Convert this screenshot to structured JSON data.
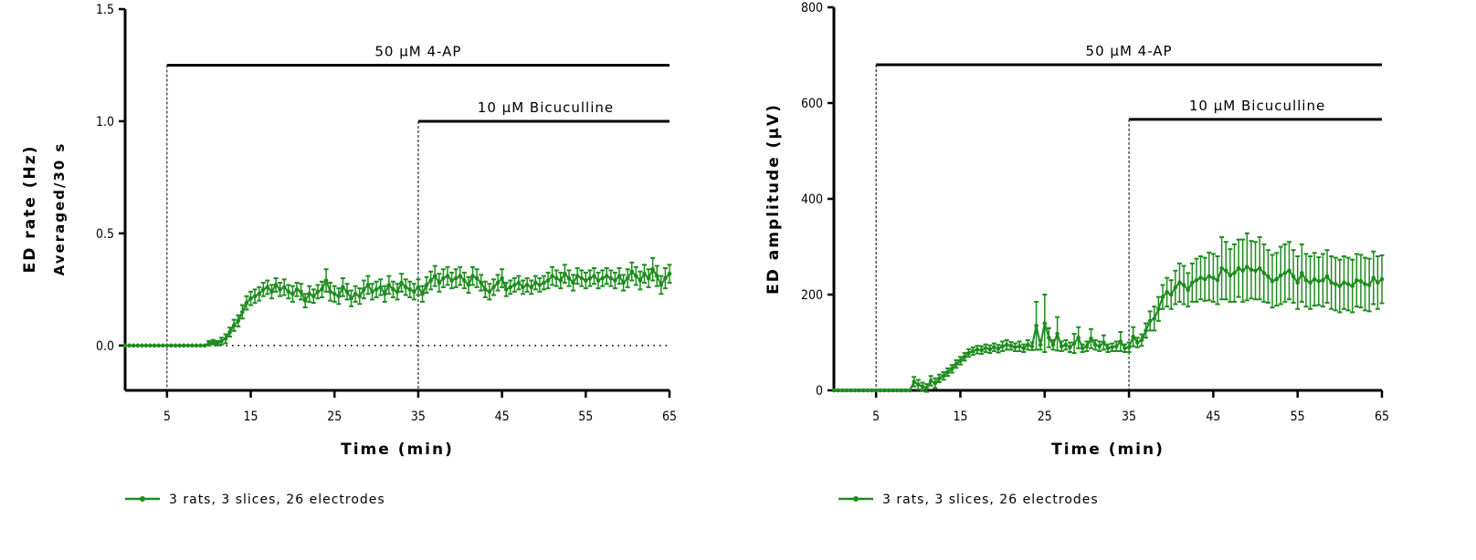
{
  "chart_data": [
    {
      "type": "line",
      "title": "",
      "xlabel": "Time (min)",
      "ylabel": "ED rate (Hz)",
      "ylabel2": "Averaged/30 s",
      "xlim": [
        0,
        65
      ],
      "ylim": [
        -0.2,
        1.5
      ],
      "xticks": [
        5,
        15,
        25,
        35,
        45,
        55,
        65
      ],
      "yticks": [
        0.0,
        0.5,
        1.0,
        1.5
      ],
      "ytick_labels": [
        "0.0",
        "0.5",
        "1.0",
        "1.5"
      ],
      "grid": false,
      "zero_line": "dotted",
      "annotations": [
        {
          "text": "50 µM 4-AP",
          "start": 5,
          "end": 65,
          "level": 1.25
        },
        {
          "text": "10 µM Bicuculline",
          "start": 35,
          "end": 65,
          "level": 1.0
        }
      ],
      "legend": {
        "placement": "bottom-left",
        "label": "3 rats, 3 slices, 26 electrodes"
      },
      "color": "#1e8c1e",
      "x_step": 0.5,
      "series": [
        {
          "name": "3 rats, 3 slices, 26 electrodes",
          "values": [
            0,
            0,
            0,
            0,
            0,
            0,
            0,
            0,
            0,
            0,
            0,
            0,
            0,
            0,
            0,
            0,
            0,
            0,
            0,
            0,
            0.01,
            0.015,
            0.01,
            0.02,
            0.03,
            0.06,
            0.09,
            0.11,
            0.15,
            0.19,
            0.21,
            0.22,
            0.23,
            0.25,
            0.26,
            0.24,
            0.27,
            0.25,
            0.26,
            0.24,
            0.23,
            0.25,
            0.24,
            0.2,
            0.23,
            0.22,
            0.24,
            0.25,
            0.29,
            0.24,
            0.23,
            0.22,
            0.26,
            0.24,
            0.21,
            0.23,
            0.22,
            0.25,
            0.27,
            0.24,
            0.25,
            0.26,
            0.23,
            0.27,
            0.25,
            0.24,
            0.28,
            0.26,
            0.25,
            0.24,
            0.26,
            0.23,
            0.27,
            0.29,
            0.31,
            0.28,
            0.3,
            0.31,
            0.29,
            0.3,
            0.31,
            0.29,
            0.27,
            0.31,
            0.3,
            0.28,
            0.25,
            0.24,
            0.26,
            0.28,
            0.3,
            0.25,
            0.26,
            0.27,
            0.28,
            0.26,
            0.27,
            0.26,
            0.28,
            0.27,
            0.28,
            0.29,
            0.31,
            0.3,
            0.29,
            0.32,
            0.3,
            0.28,
            0.31,
            0.3,
            0.29,
            0.3,
            0.31,
            0.29,
            0.3,
            0.31,
            0.3,
            0.29,
            0.31,
            0.28,
            0.3,
            0.33,
            0.31,
            0.29,
            0.32,
            0.3,
            0.34,
            0.31,
            0.27,
            0.3,
            0.32
          ],
          "errors": [
            0,
            0,
            0,
            0,
            0,
            0,
            0,
            0,
            0,
            0,
            0,
            0,
            0,
            0,
            0,
            0,
            0,
            0,
            0,
            0,
            0.01,
            0.01,
            0.01,
            0.015,
            0.02,
            0.02,
            0.025,
            0.025,
            0.03,
            0.03,
            0.03,
            0.03,
            0.03,
            0.03,
            0.03,
            0.03,
            0.03,
            0.03,
            0.035,
            0.03,
            0.035,
            0.03,
            0.035,
            0.03,
            0.035,
            0.03,
            0.03,
            0.035,
            0.05,
            0.04,
            0.035,
            0.035,
            0.04,
            0.035,
            0.035,
            0.035,
            0.035,
            0.04,
            0.04,
            0.035,
            0.035,
            0.035,
            0.035,
            0.04,
            0.035,
            0.035,
            0.04,
            0.035,
            0.035,
            0.035,
            0.035,
            0.035,
            0.035,
            0.04,
            0.045,
            0.04,
            0.04,
            0.04,
            0.035,
            0.04,
            0.04,
            0.035,
            0.035,
            0.04,
            0.04,
            0.035,
            0.035,
            0.035,
            0.035,
            0.035,
            0.04,
            0.03,
            0.03,
            0.03,
            0.03,
            0.03,
            0.03,
            0.03,
            0.03,
            0.03,
            0.03,
            0.035,
            0.04,
            0.035,
            0.035,
            0.04,
            0.035,
            0.035,
            0.035,
            0.035,
            0.035,
            0.035,
            0.035,
            0.035,
            0.035,
            0.035,
            0.035,
            0.035,
            0.035,
            0.035,
            0.04,
            0.04,
            0.04,
            0.04,
            0.04,
            0.04,
            0.05,
            0.045,
            0.04,
            0.045,
            0.04
          ]
        }
      ]
    },
    {
      "type": "line",
      "title": "",
      "xlabel": "Time (min)",
      "ylabel": "ED amplitude (µV)",
      "xlim": [
        0,
        65
      ],
      "ylim": [
        0,
        800
      ],
      "xticks": [
        5,
        15,
        25,
        35,
        45,
        55,
        65
      ],
      "yticks": [
        0,
        200,
        400,
        600,
        800
      ],
      "ytick_labels": [
        "0",
        "200",
        "400",
        "600",
        "800"
      ],
      "grid": false,
      "annotations": [
        {
          "text": "50 µM 4-AP",
          "start": 5,
          "end": 65,
          "level": 680
        },
        {
          "text": "10 µM Bicuculline",
          "start": 35,
          "end": 65,
          "level": 566
        }
      ],
      "legend": {
        "placement": "bottom-left",
        "label": "3 rats, 3 slices, 26 electrodes"
      },
      "color": "#1e8c1e",
      "x_step": 0.5,
      "series": [
        {
          "name": "3 rats, 3 slices, 26 electrodes",
          "values": [
            0,
            0,
            0,
            0,
            0,
            0,
            0,
            0,
            0,
            0,
            0,
            0,
            0,
            0,
            0,
            0,
            0,
            0,
            0,
            18,
            12,
            8,
            5,
            20,
            15,
            25,
            30,
            38,
            45,
            55,
            62,
            70,
            78,
            82,
            85,
            84,
            88,
            86,
            90,
            87,
            92,
            95,
            93,
            90,
            92,
            88,
            95,
            92,
            135,
            95,
            140,
            110,
            95,
            118,
            92,
            95,
            90,
            98,
            110,
            88,
            92,
            108,
            95,
            92,
            100,
            88,
            90,
            92,
            102,
            88,
            90,
            112,
            100,
            105,
            125,
            145,
            150,
            170,
            195,
            205,
            200,
            215,
            225,
            220,
            210,
            225,
            230,
            235,
            232,
            238,
            235,
            230,
            255,
            250,
            240,
            245,
            255,
            250,
            258,
            252,
            250,
            255,
            245,
            238,
            228,
            232,
            240,
            245,
            250,
            238,
            225,
            245,
            230,
            225,
            232,
            228,
            230,
            238,
            225,
            222,
            218,
            225,
            222,
            218,
            230,
            228,
            222,
            220,
            235,
            225,
            232
          ],
          "errors": [
            0,
            0,
            0,
            0,
            0,
            0,
            0,
            0,
            0,
            0,
            0,
            0,
            0,
            0,
            0,
            0,
            0,
            0,
            0,
            10,
            10,
            8,
            8,
            10,
            10,
            8,
            8,
            8,
            8,
            8,
            8,
            8,
            8,
            8,
            8,
            8,
            8,
            8,
            8,
            8,
            10,
            10,
            8,
            8,
            10,
            8,
            10,
            8,
            50,
            10,
            60,
            20,
            10,
            35,
            10,
            10,
            10,
            20,
            22,
            8,
            10,
            20,
            10,
            10,
            15,
            8,
            8,
            10,
            20,
            8,
            10,
            20,
            10,
            12,
            15,
            20,
            25,
            25,
            25,
            30,
            30,
            35,
            40,
            40,
            35,
            40,
            45,
            45,
            45,
            50,
            50,
            50,
            65,
            60,
            55,
            60,
            60,
            65,
            70,
            60,
            60,
            65,
            60,
            55,
            55,
            55,
            60,
            60,
            60,
            55,
            55,
            60,
            55,
            55,
            55,
            50,
            55,
            55,
            55,
            55,
            55,
            55,
            55,
            55,
            55,
            55,
            55,
            55,
            55,
            55,
            50
          ]
        }
      ]
    }
  ]
}
